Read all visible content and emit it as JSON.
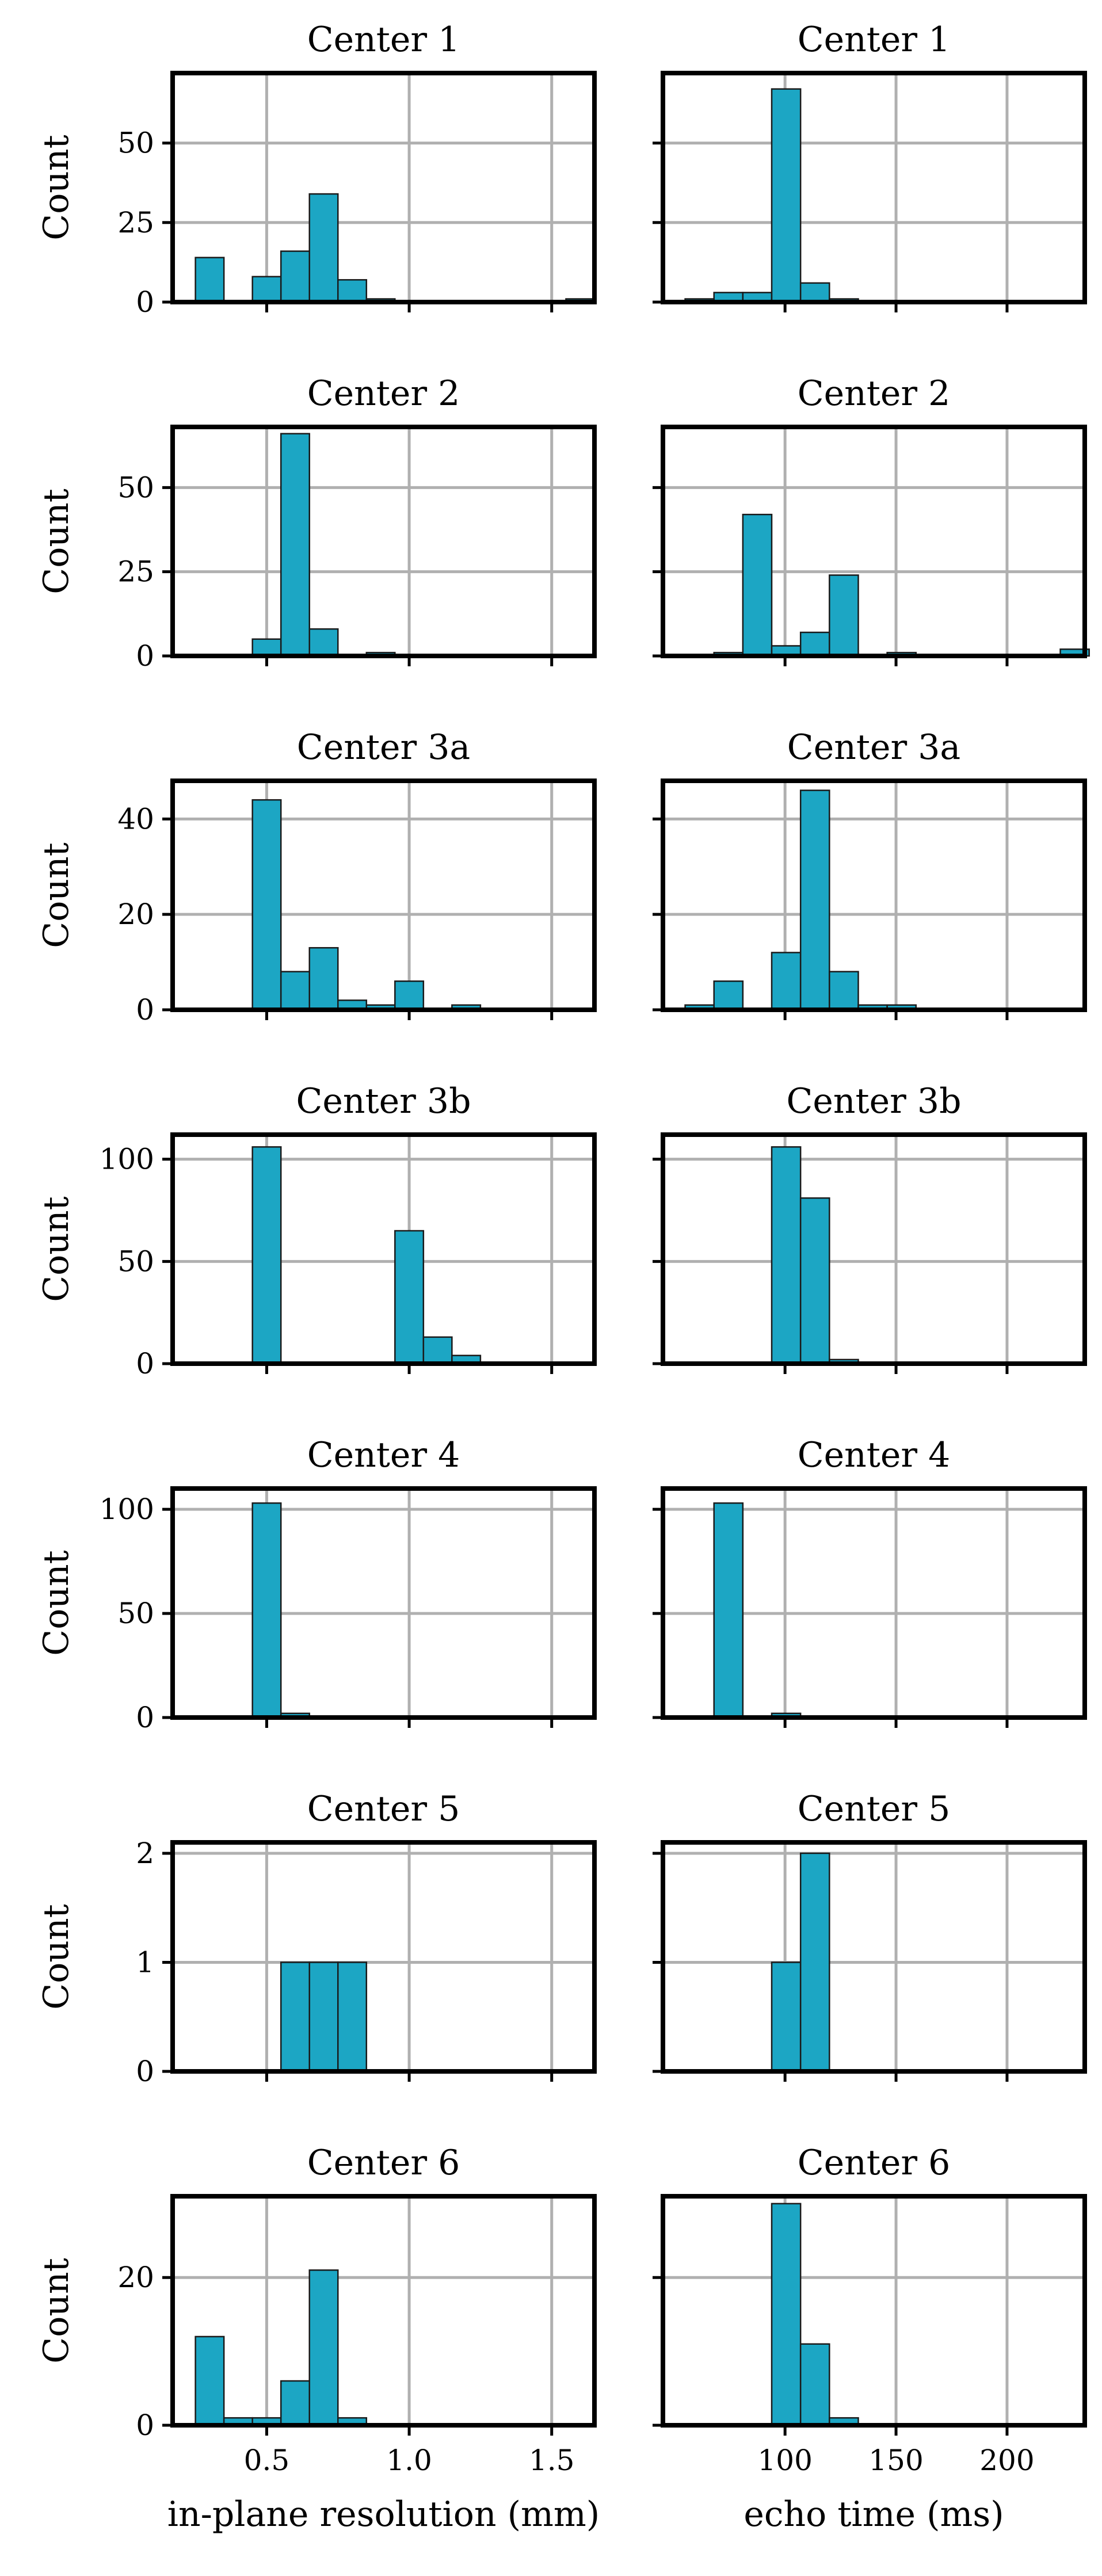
{
  "chart_data": {
    "type": "bar",
    "layout": "7 rows x 2 columns of histograms",
    "bar_color": "#1ca6c4",
    "grid": true,
    "columns": [
      {
        "xlabel": "in-plane resolution (mm)",
        "xlim": [
          0.17,
          1.65
        ],
        "xticks": [
          0.5,
          1.0,
          1.5
        ],
        "xtick_labels": [
          "0.5",
          "1.0",
          "1.5"
        ],
        "bin_edges": [
          0.25,
          0.35,
          0.45,
          0.55,
          0.65,
          0.75,
          0.85,
          0.95,
          1.05,
          1.15,
          1.25,
          1.35,
          1.45,
          1.55,
          1.65
        ]
      },
      {
        "xlabel": "echo time (ms)",
        "xlim": [
          45,
          235
        ],
        "xticks": [
          100,
          150,
          200
        ],
        "xtick_labels": [
          "100",
          "150",
          "200"
        ],
        "bin_edges": [
          55,
          68,
          81,
          94,
          107,
          120,
          133,
          146,
          159,
          172,
          185,
          198,
          211,
          224,
          237
        ]
      }
    ],
    "rows": [
      {
        "title": "Center 1",
        "ylabel": "Count",
        "ylim": [
          0,
          72
        ],
        "yticks": [
          0,
          25,
          50
        ],
        "ytick_labels": [
          "0",
          "25",
          "50"
        ],
        "resolution_counts": [
          14,
          0,
          8,
          16,
          34,
          7,
          1,
          0,
          0,
          0,
          0,
          0,
          0,
          1
        ],
        "echo_time_counts": [
          1,
          3,
          3,
          67,
          6,
          1,
          0,
          0,
          0,
          0,
          0,
          0,
          0,
          0
        ]
      },
      {
        "title": "Center 2",
        "ylabel": "Count",
        "ylim": [
          0,
          68
        ],
        "yticks": [
          0,
          25,
          50
        ],
        "ytick_labels": [
          "0",
          "25",
          "50"
        ],
        "resolution_counts": [
          0,
          0,
          5,
          66,
          8,
          0,
          1,
          0,
          0,
          0,
          0,
          0,
          0,
          0
        ],
        "echo_time_counts": [
          0,
          1,
          42,
          3,
          7,
          24,
          0,
          1,
          0,
          0,
          0,
          0,
          0,
          2
        ]
      },
      {
        "title": "Center 3a",
        "ylabel": "Count",
        "ylim": [
          0,
          48
        ],
        "yticks": [
          0,
          20,
          40
        ],
        "ytick_labels": [
          "0",
          "20",
          "40"
        ],
        "resolution_counts": [
          0,
          0,
          44,
          8,
          13,
          2,
          1,
          6,
          0,
          1,
          0,
          0,
          0,
          0
        ],
        "echo_time_counts": [
          1,
          6,
          0,
          12,
          46,
          8,
          1,
          1,
          0,
          0,
          0,
          0,
          0,
          0
        ]
      },
      {
        "title": "Center 3b",
        "ylabel": "Count",
        "ylim": [
          0,
          112
        ],
        "yticks": [
          0,
          50,
          100
        ],
        "ytick_labels": [
          "0",
          "50",
          "100"
        ],
        "resolution_counts": [
          0,
          0,
          106,
          0,
          0,
          0,
          0,
          65,
          13,
          4,
          0,
          0,
          0,
          0
        ],
        "echo_time_counts": [
          0,
          0,
          0,
          106,
          81,
          2,
          0,
          0,
          0,
          0,
          0,
          0,
          0,
          0
        ]
      },
      {
        "title": "Center 4",
        "ylabel": "Count",
        "ylim": [
          0,
          110
        ],
        "yticks": [
          0,
          50,
          100
        ],
        "ytick_labels": [
          "0",
          "50",
          "100"
        ],
        "resolution_counts": [
          0,
          0,
          103,
          2,
          0,
          0,
          0,
          0,
          0,
          0,
          0,
          0,
          0,
          0
        ],
        "echo_time_counts": [
          0,
          103,
          0,
          2,
          0,
          0,
          0,
          0,
          0,
          0,
          0,
          0,
          0,
          0
        ]
      },
      {
        "title": "Center 5",
        "ylabel": "Count",
        "ylim": [
          0,
          2.1
        ],
        "yticks": [
          0,
          1,
          2
        ],
        "ytick_labels": [
          "0",
          "1",
          "2"
        ],
        "resolution_counts": [
          0,
          0,
          0,
          1,
          1,
          1,
          0,
          0,
          0,
          0,
          0,
          0,
          0,
          0
        ],
        "echo_time_counts": [
          0,
          0,
          0,
          1,
          2,
          0,
          0,
          0,
          0,
          0,
          0,
          0,
          0,
          0
        ]
      },
      {
        "title": "Center 6",
        "ylabel": "Count",
        "ylim": [
          0,
          31
        ],
        "yticks": [
          0,
          20
        ],
        "ytick_labels": [
          "0",
          "20"
        ],
        "resolution_counts": [
          12,
          1,
          1,
          6,
          21,
          1,
          0,
          0,
          0,
          0,
          0,
          0,
          0,
          0
        ],
        "echo_time_counts": [
          0,
          0,
          0,
          30,
          11,
          1,
          0,
          0,
          0,
          0,
          0,
          0,
          0,
          0
        ]
      }
    ]
  }
}
